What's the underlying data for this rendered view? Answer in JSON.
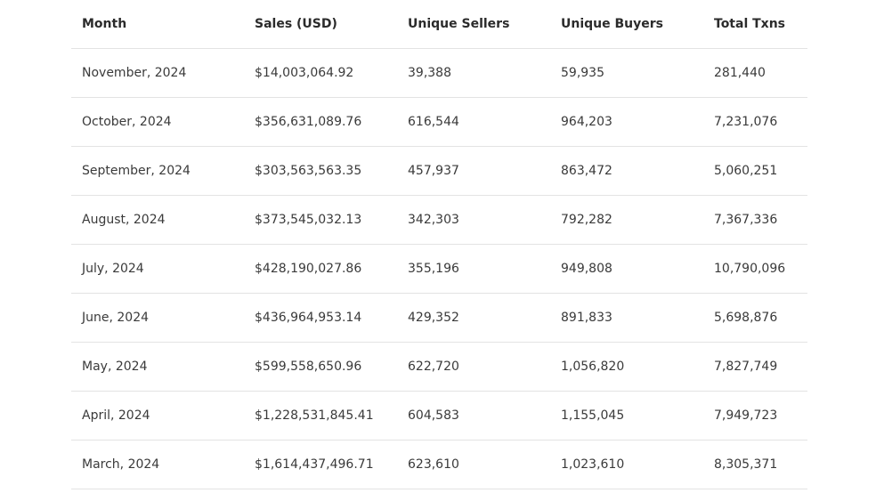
{
  "table": {
    "headers": [
      "Month",
      "Sales (USD)",
      "Unique Sellers",
      "Unique Buyers",
      "Total Txns"
    ],
    "rows": [
      [
        "November, 2024",
        "$14,003,064.92",
        "39,388",
        "59,935",
        "281,440"
      ],
      [
        "October, 2024",
        "$356,631,089.76",
        "616,544",
        "964,203",
        "7,231,076"
      ],
      [
        "September, 2024",
        "$303,563,563.35",
        "457,937",
        "863,472",
        "5,060,251"
      ],
      [
        "August, 2024",
        "$373,545,032.13",
        "342,303",
        "792,282",
        "7,367,336"
      ],
      [
        "July, 2024",
        "$428,190,027.86",
        "355,196",
        "949,808",
        "10,790,096"
      ],
      [
        "June, 2024",
        "$436,964,953.14",
        "429,352",
        "891,833",
        "5,698,876"
      ],
      [
        "May, 2024",
        "$599,558,650.96",
        "622,720",
        "1,056,820",
        "7,827,749"
      ],
      [
        "April, 2024",
        "$1,228,531,845.41",
        "604,583",
        "1,155,045",
        "7,949,723"
      ],
      [
        "March, 2024",
        "$1,614,437,496.71",
        "623,610",
        "1,023,610",
        "8,305,371"
      ]
    ]
  }
}
